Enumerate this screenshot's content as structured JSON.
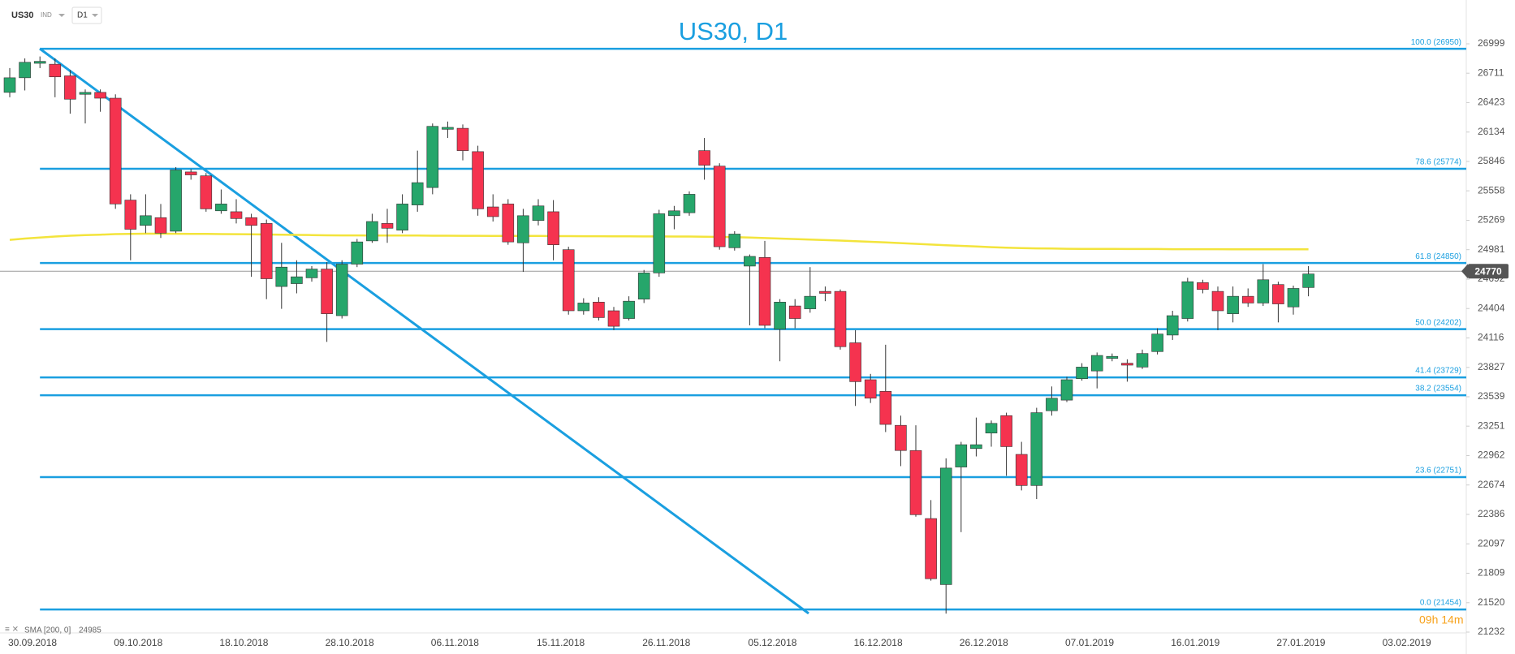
{
  "header": {
    "symbol": "US30",
    "instrument_type": "IND",
    "interval": "D1"
  },
  "chart_data": {
    "type": "candlestick",
    "title": "US30, D1",
    "categories": [
      "30.09.2018",
      null,
      null,
      null,
      null,
      null,
      null,
      "09.10.2018",
      null,
      null,
      null,
      null,
      null,
      null,
      "18.10.2018",
      null,
      null,
      null,
      null,
      null,
      null,
      "28.10.2018",
      null,
      null,
      null,
      null,
      null,
      null,
      "06.11.2018",
      null,
      null,
      null,
      null,
      null,
      null,
      "15.11.2018",
      null,
      null,
      null,
      null,
      null,
      null,
      "26.11.2018",
      null,
      null,
      null,
      null,
      null,
      null,
      "05.12.2018",
      null,
      null,
      null,
      null,
      null,
      null,
      "16.12.2018",
      null,
      null,
      null,
      null,
      null,
      null,
      "26.12.2018",
      null,
      null,
      null,
      null,
      null,
      null,
      "07.01.2019",
      null,
      null,
      null,
      null,
      null,
      null,
      "16.01.2019",
      null,
      null,
      null,
      null,
      null,
      null,
      "27.01.2019",
      null,
      null,
      null,
      null,
      null,
      null,
      "03.02.2019"
    ],
    "series": [
      {
        "name": "US30",
        "up_color": "#26a66b",
        "down_color": "#f5334f",
        "open": [
          26523,
          26666,
          26808,
          26799,
          26685,
          26504,
          26523,
          26466,
          25467,
          25219,
          25295,
          25162,
          25743,
          25705,
          25362,
          25353,
          25295,
          25238,
          24620,
          24648,
          24705,
          24791,
          24334,
          24839,
          25067,
          25238,
          25172,
          25419,
          25590,
          26161,
          26171,
          25942,
          25400,
          25429,
          25048,
          25267,
          25353,
          24981,
          24382,
          24467,
          24382,
          24306,
          24496,
          24753,
          25314,
          25343,
          25952,
          25800,
          25000,
          24820,
          24905,
          24201,
          24429,
          24401,
          24572,
          24572,
          24068,
          23706,
          23592,
          23259,
          23012,
          22345,
          21698,
          22850,
          23031,
          23183,
          23354,
          22974,
          22669,
          23402,
          23506,
          23716,
          23792,
          23915,
          23868,
          23830,
          23982,
          24144,
          24306,
          24658,
          24572,
          24353,
          24524,
          24458,
          24639,
          24420,
          24610,
          null,
          null,
          null,
          null,
          null
        ],
        "high": [
          26761,
          26856,
          26875,
          26856,
          26742,
          26552,
          26552,
          26504,
          25524,
          25524,
          25429,
          25790,
          25771,
          25733,
          25571,
          25476,
          25333,
          25276,
          25048,
          24877,
          24820,
          24858,
          24877,
          25086,
          25333,
          25381,
          25524,
          25952,
          26218,
          26237,
          26209,
          26000,
          25524,
          25476,
          25381,
          25476,
          25467,
          25010,
          24505,
          24515,
          24420,
          24524,
          24782,
          25372,
          25410,
          25552,
          26076,
          25828,
          25162,
          24934,
          25067,
          24496,
          24496,
          24810,
          24620,
          24591,
          24192,
          23763,
          24049,
          23354,
          23259,
          22526,
          22935,
          23097,
          23335,
          23306,
          23383,
          23097,
          23431,
          23640,
          23735,
          23868,
          23973,
          23963,
          23906,
          24001,
          24211,
          24382,
          24705,
          24686,
          24620,
          24620,
          24601,
          24839,
          24667,
          24629,
          24820,
          null,
          null,
          null,
          null,
          null
        ],
        "low": [
          26475,
          26542,
          26761,
          26475,
          26314,
          26218,
          26333,
          25381,
          24877,
          25143,
          25096,
          25143,
          25667,
          25353,
          25333,
          25238,
          24715,
          24496,
          24401,
          24553,
          24667,
          24077,
          24306,
          24810,
          25048,
          25048,
          25143,
          25353,
          25524,
          26076,
          25857,
          25314,
          25257,
          25029,
          24763,
          25219,
          24877,
          24344,
          24344,
          24287,
          24192,
          24287,
          24458,
          24715,
          25181,
          25314,
          25667,
          24981,
          24972,
          24239,
          24211,
          23887,
          24211,
          24363,
          24476,
          24001,
          23449,
          23478,
          23193,
          22859,
          22364,
          21736,
          21413,
          22212,
          22954,
          23050,
          22764,
          22621,
          22536,
          23354,
          23487,
          23697,
          23621,
          23887,
          23687,
          23811,
          23954,
          24096,
          24277,
          24553,
          24192,
          24268,
          24420,
          24429,
          24268,
          24344,
          24524,
          null,
          null,
          null,
          null,
          null
        ],
        "close": [
          26666,
          26818,
          26827,
          26675,
          26456,
          26523,
          26466,
          25429,
          25181,
          25314,
          25143,
          25762,
          25714,
          25381,
          25429,
          25286,
          25219,
          24696,
          24810,
          24715,
          24791,
          24353,
          24839,
          25057,
          25257,
          25191,
          25429,
          25638,
          26190,
          26180,
          25952,
          25381,
          25305,
          25057,
          25314,
          25410,
          25029,
          24382,
          24458,
          24315,
          24230,
          24476,
          24753,
          25333,
          25362,
          25524,
          25809,
          25010,
          25134,
          24915,
          24239,
          24467,
          24306,
          24524,
          24553,
          24030,
          23687,
          23525,
          23268,
          23012,
          22383,
          21755,
          22840,
          23069,
          23069,
          23278,
          23050,
          22669,
          23383,
          23525,
          23706,
          23830,
          23944,
          23935,
          23849,
          23963,
          24154,
          24334,
          24667,
          24591,
          24382,
          24524,
          24458,
          24686,
          24449,
          24601,
          24743,
          null,
          null,
          null,
          null,
          null
        ]
      }
    ],
    "sma": {
      "label": "SMA [200, 0]",
      "value": 24985,
      "color": "#f3e43c",
      "values": [
        25077,
        25090,
        25100,
        25110,
        25118,
        25124,
        25128,
        25134,
        25136,
        25138,
        25138,
        25137,
        25136,
        25135,
        25134,
        25133,
        25132,
        25130,
        25128,
        25126,
        25124,
        25122,
        25121,
        25121,
        25120,
        25120,
        25119,
        25119,
        25118,
        25118,
        25117,
        25117,
        25116,
        25116,
        25115,
        25115,
        25114,
        25114,
        25113,
        25113,
        25112,
        25112,
        25111,
        25111,
        25110,
        25110,
        25108,
        25106,
        25104,
        25100,
        25095,
        25090,
        25085,
        25080,
        25075,
        25070,
        25064,
        25058,
        25052,
        25045,
        25038,
        25031,
        25024,
        25018,
        25012,
        25006,
        25001,
        24997,
        24994,
        24992,
        24990,
        24989,
        24988,
        24988,
        24987,
        24987,
        24987,
        24986,
        24986,
        24986,
        24986,
        24985,
        24985,
        24985,
        24985,
        24985,
        24985,
        null,
        null,
        null,
        null,
        null
      ]
    },
    "fib_levels": [
      {
        "value": 26950,
        "label": "100.0 (26950)"
      },
      {
        "value": 25774,
        "label": "78.6 (25774)"
      },
      {
        "value": 24850,
        "label": "61.8 (24850)"
      },
      {
        "value": 24202,
        "label": "50.0 (24202)"
      },
      {
        "value": 23729,
        "label": "41.4 (23729)"
      },
      {
        "value": 23554,
        "label": "38.2 (23554)"
      },
      {
        "value": 22751,
        "label": "23.6 (22751)"
      },
      {
        "value": 21454,
        "label": "0.0 (21454)"
      }
    ],
    "fib_color": "#1a9fe0",
    "last_price": 24770,
    "timer": "09h 14m",
    "ylim": [
      21232,
      26999
    ],
    "yticks": [
      26999,
      26711,
      26423,
      26134,
      25846,
      25558,
      25269,
      24981,
      24692,
      24404,
      24116,
      23827,
      23539,
      23251,
      22962,
      22674,
      22386,
      22097,
      21809,
      21520,
      21232
    ]
  }
}
